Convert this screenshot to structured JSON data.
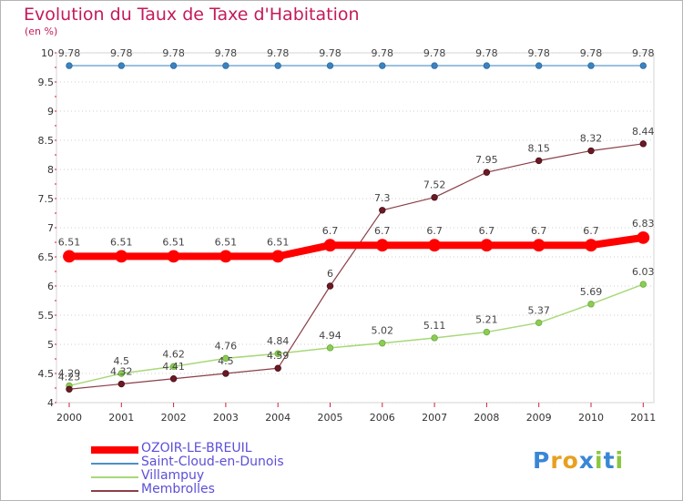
{
  "title": "Evolution du Taux de Taxe d'Habitation",
  "subtitle": "(en %)",
  "chart_data": {
    "type": "line",
    "title": "Evolution du Taux de Taxe d'Habitation",
    "ylabel": "(en %)",
    "xlabel": "",
    "x": [
      "2000",
      "2001",
      "2002",
      "2003",
      "2004",
      "2005",
      "2006",
      "2007",
      "2008",
      "2009",
      "2010",
      "2011"
    ],
    "ylim": [
      4,
      10
    ],
    "yticks": [
      "4",
      "4.5",
      "5",
      "5.5",
      "6",
      "6.5",
      "7",
      "7.5",
      "8",
      "8.5",
      "9",
      "9.5",
      "10"
    ],
    "grid": "horizontal dotted",
    "legend_position": "bottom-left",
    "series": [
      {
        "name": "OZOIR-LE-BREUIL",
        "color": "#ff0000",
        "values": [
          6.51,
          6.51,
          6.51,
          6.51,
          6.51,
          6.7,
          6.7,
          6.7,
          6.7,
          6.7,
          6.7,
          6.83
        ],
        "labels": [
          "6.51",
          "6.51",
          "6.51",
          "6.51",
          "6.51",
          "6.7",
          "6.7",
          "6.7",
          "6.7",
          "6.7",
          "6.7",
          "6.83"
        ]
      },
      {
        "name": "Saint-Cloud-en-Dunois",
        "color": "#4a90c8",
        "values": [
          9.78,
          9.78,
          9.78,
          9.78,
          9.78,
          9.78,
          9.78,
          9.78,
          9.78,
          9.78,
          9.78,
          9.78
        ],
        "labels": [
          "9.78",
          "9.78",
          "9.78",
          "9.78",
          "9.78",
          "9.78",
          "9.78",
          "9.78",
          "9.78",
          "9.78",
          "9.78",
          "9.78"
        ]
      },
      {
        "name": "Villampuy",
        "color": "#9fd46a",
        "values": [
          4.29,
          4.5,
          4.62,
          4.76,
          4.84,
          4.94,
          5.02,
          5.11,
          5.21,
          5.37,
          5.69,
          6.03
        ],
        "labels": [
          "4.29",
          "4.5",
          "4.62",
          "4.76",
          "4.84",
          "4.94",
          "5.02",
          "5.11",
          "5.21",
          "5.37",
          "5.69",
          "6.03"
        ]
      },
      {
        "name": "Membrolles",
        "color": "#7a2a33",
        "values": [
          4.23,
          4.32,
          4.41,
          4.5,
          4.59,
          6.0,
          7.3,
          7.52,
          7.95,
          8.15,
          8.32,
          8.44
        ],
        "labels": [
          "4.23",
          "4.32",
          "4.41",
          "4.5",
          "4.59",
          "6",
          "7.3",
          "7.52",
          "7.95",
          "8.15",
          "8.32",
          "8.44"
        ]
      }
    ]
  },
  "brand": {
    "letters": [
      "P",
      "r",
      "o",
      "x",
      "i",
      "t",
      "i"
    ],
    "colors": [
      "#3a86d6",
      "#e8a020",
      "#e8a020",
      "#3a86d6",
      "#8cc63f",
      "#3a86d6",
      "#8cc63f"
    ]
  }
}
